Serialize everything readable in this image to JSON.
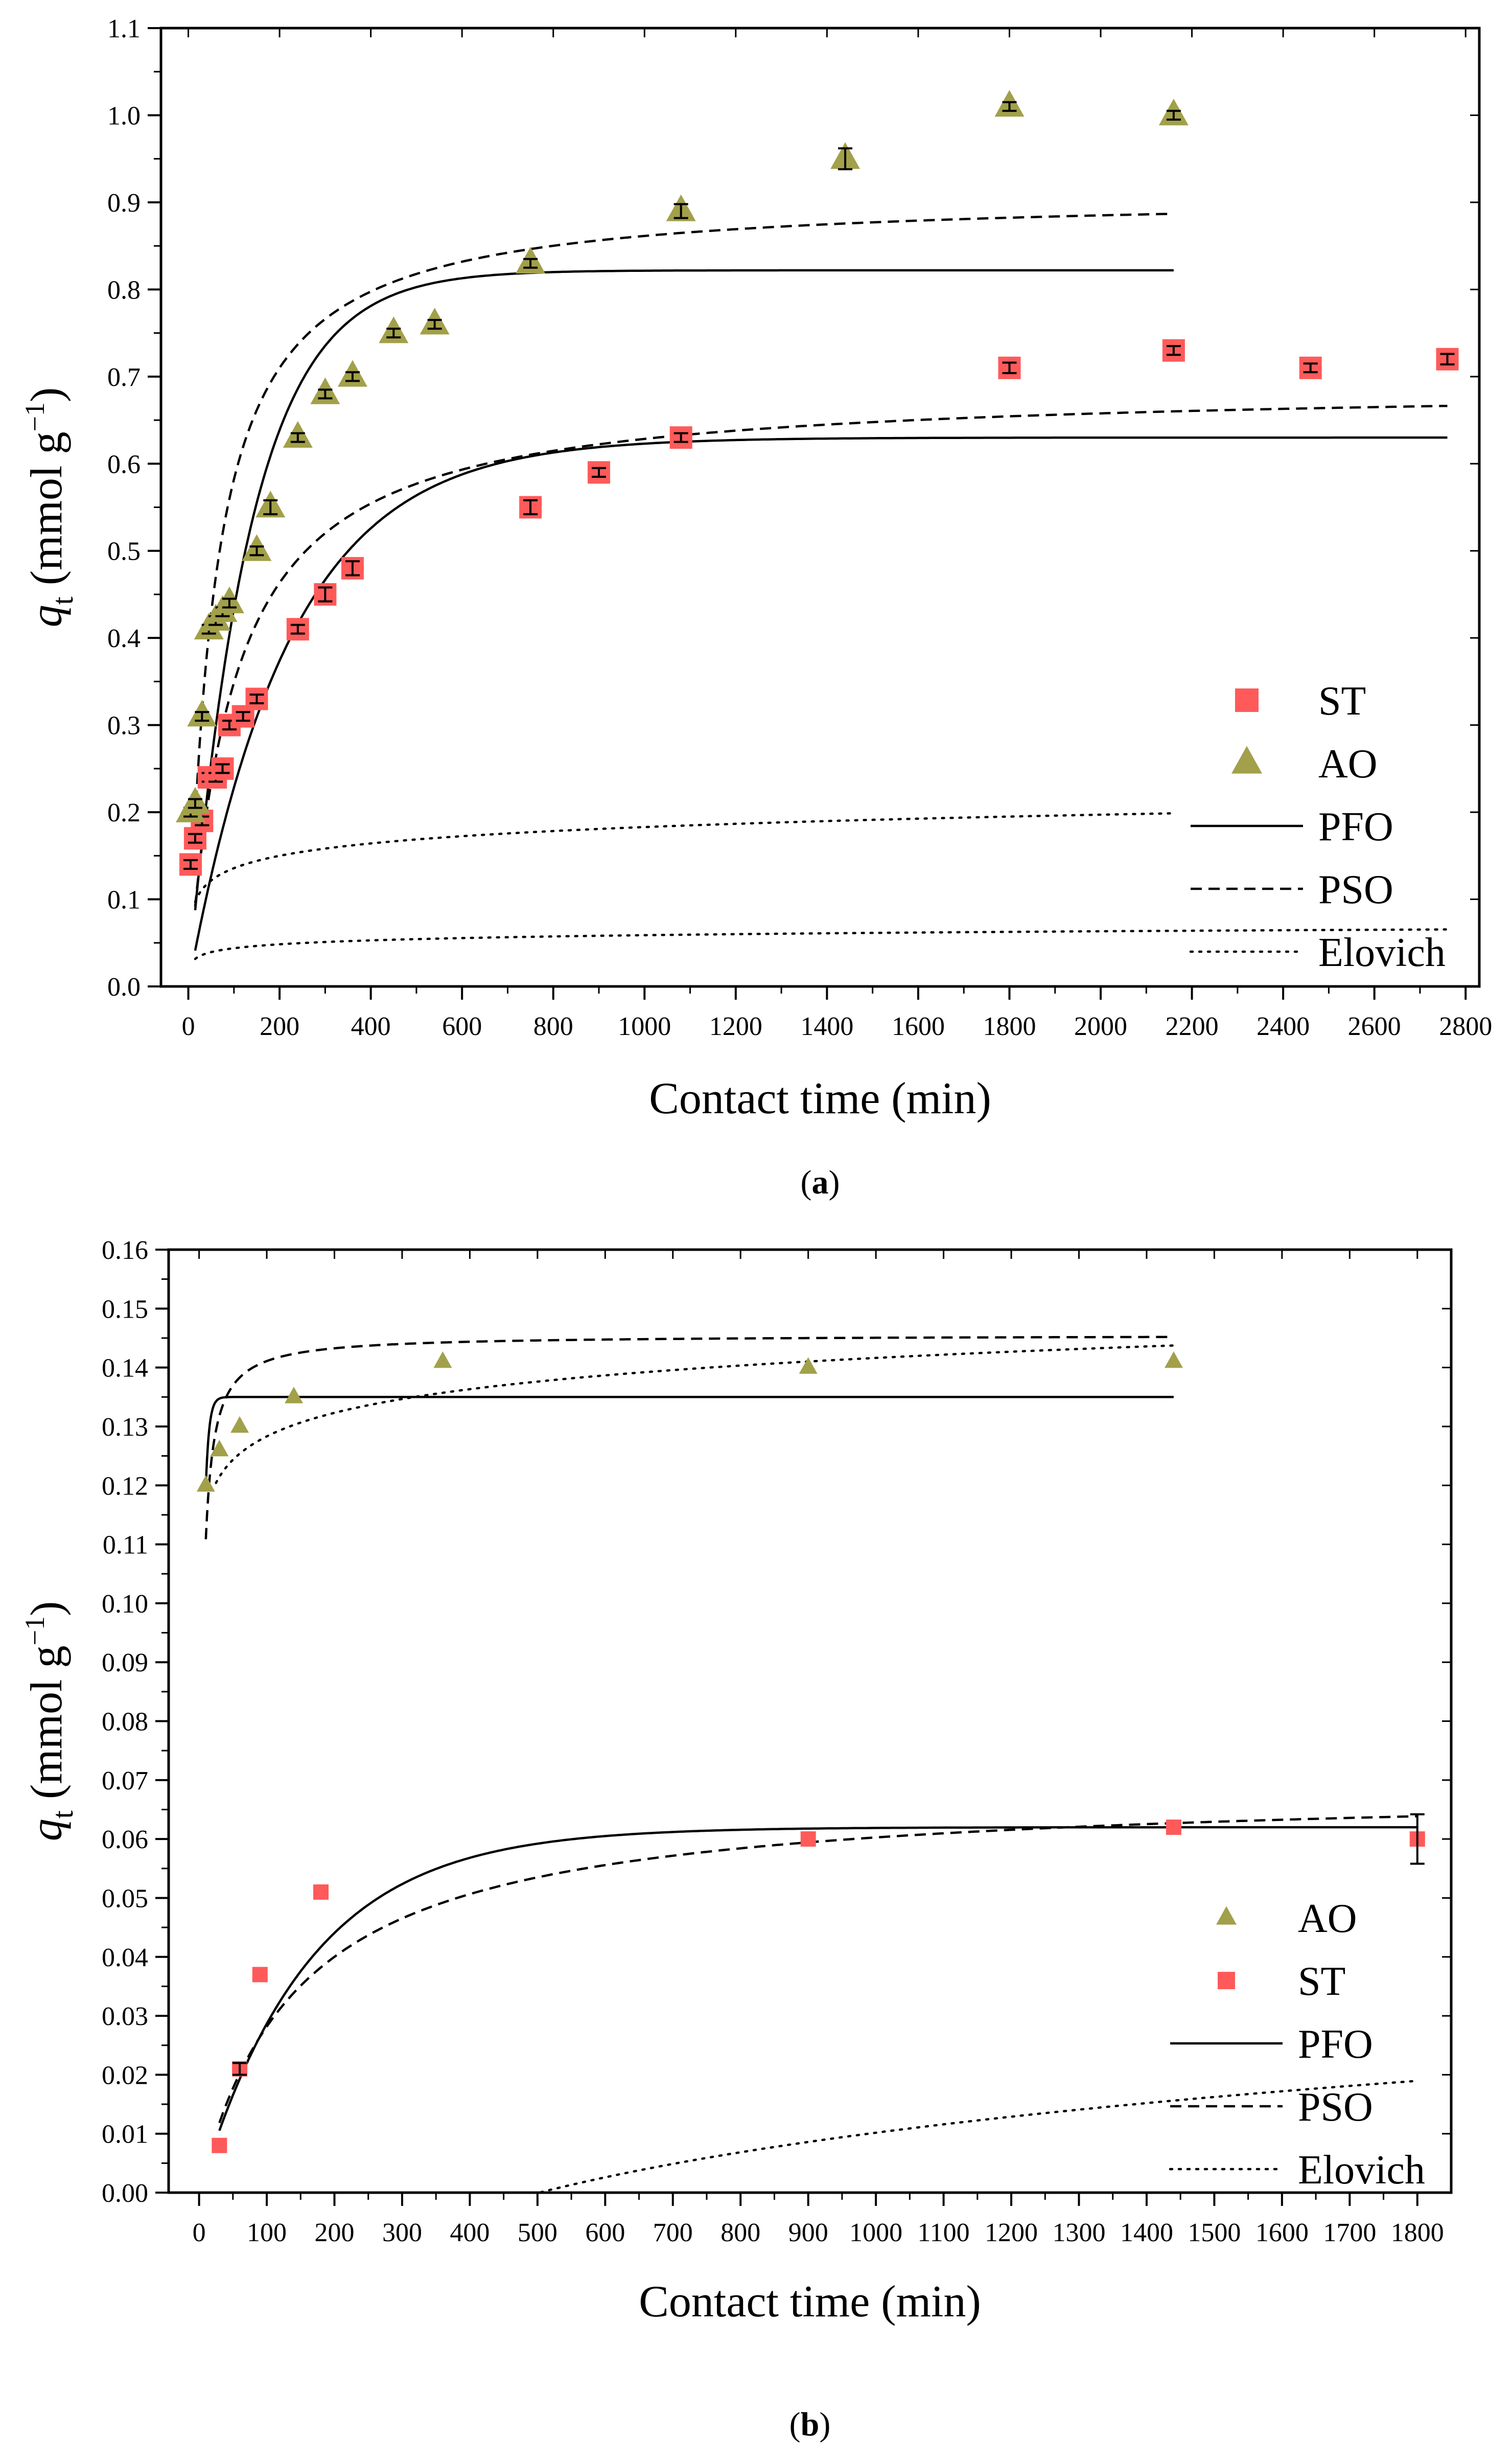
{
  "colors": {
    "st": "#ff5a5a",
    "ao": "#a2a04a",
    "line": "#000000"
  },
  "chart_data": [
    {
      "type": "scatter",
      "panel": "a",
      "caption": {
        "open": "(",
        "letter": "a",
        "close": ")"
      },
      "xlabel": "Contact time (min)",
      "ylabel": {
        "symbol": "q",
        "sub": "t",
        "unit_pre": " (mmol g",
        "unit_sup": "−1",
        "unit_post": ")"
      },
      "xlim": [
        -60,
        2830
      ],
      "ylim": [
        0,
        1.1
      ],
      "xticks": [
        0,
        200,
        400,
        600,
        800,
        1000,
        1200,
        1400,
        1600,
        1800,
        2000,
        2200,
        2400,
        2600,
        2800
      ],
      "yticks": [
        0.0,
        0.1,
        0.2,
        0.3,
        0.4,
        0.5,
        0.6,
        0.7,
        0.8,
        0.9,
        1.0,
        1.1
      ],
      "xminor": 100,
      "yminor": 0.05,
      "ydecimals": 1,
      "legend": {
        "items": [
          {
            "key": "ST",
            "label": "ST",
            "kind": "square"
          },
          {
            "key": "AO",
            "label": "AO",
            "kind": "triangle"
          },
          {
            "key": "PFO",
            "label": "PFO",
            "kind": "solid"
          },
          {
            "key": "PSO",
            "label": "PSO",
            "kind": "dashed"
          },
          {
            "key": "Elovich",
            "label": "Elovich",
            "kind": "dotted"
          }
        ]
      },
      "series": [
        {
          "name": "ST",
          "kind": "square",
          "marker_size": 44,
          "x": [
            5,
            15,
            30,
            45,
            60,
            75,
            90,
            120,
            150,
            240,
            300,
            360,
            750,
            900,
            1080,
            1800,
            2160,
            2460,
            2760
          ],
          "y": [
            0.14,
            0.17,
            0.19,
            0.24,
            0.24,
            0.25,
            0.3,
            0.31,
            0.33,
            0.41,
            0.45,
            0.48,
            0.55,
            0.59,
            0.63,
            0.71,
            0.73,
            0.71,
            0.72
          ],
          "err": [
            0.005,
            0.005,
            0.005,
            0.005,
            0.005,
            0.005,
            0.005,
            0.005,
            0.005,
            0.005,
            0.008,
            0.008,
            0.008,
            0.005,
            0.005,
            0.006,
            0.005,
            0.005,
            0.006
          ]
        },
        {
          "name": "AO",
          "kind": "triangle",
          "marker_size": 58,
          "x": [
            5,
            15,
            30,
            45,
            60,
            75,
            90,
            150,
            180,
            240,
            300,
            360,
            450,
            540,
            750,
            1080,
            1440,
            1800,
            2160
          ],
          "y": [
            0.2,
            0.21,
            0.31,
            0.41,
            0.42,
            0.43,
            0.44,
            0.5,
            0.55,
            0.63,
            0.68,
            0.7,
            0.75,
            0.76,
            0.83,
            0.89,
            0.95,
            1.01,
            1.0
          ],
          "err": [
            0.005,
            0.005,
            0.005,
            0.005,
            0.005,
            0.005,
            0.005,
            0.005,
            0.008,
            0.005,
            0.005,
            0.005,
            0.005,
            0.005,
            0.005,
            0.008,
            0.012,
            0.005,
            0.005
          ]
        },
        {
          "name": "PFO (AO)",
          "kind": "pfo",
          "qe": 0.822,
          "k": 0.0075,
          "x0": 15,
          "x1": 2160
        },
        {
          "name": "PSO (AO)",
          "kind": "pso",
          "qe": 0.91,
          "k": 0.0195,
          "x0": 15,
          "x1": 2160
        },
        {
          "name": "Elovich (AO)",
          "kind": "elovich",
          "a": 0.0205,
          "b": 7.5,
          "x0": 15,
          "x1": 2160
        },
        {
          "name": "PFO (ST)",
          "kind": "pfo",
          "qe": 0.63,
          "k": 0.0045,
          "x0": 15,
          "x1": 2760
        },
        {
          "name": "PSO (ST)",
          "kind": "pso",
          "qe": 0.69,
          "k": 0.0148,
          "x0": 15,
          "x1": 2760
        },
        {
          "name": "Elovich (ST)",
          "kind": "elovich",
          "a": 0.0065,
          "b": 8.5,
          "x0": 15,
          "x1": 2760
        }
      ]
    },
    {
      "type": "scatter",
      "panel": "b",
      "caption": {
        "open": "(",
        "letter": "b",
        "close": ")"
      },
      "xlabel": "Contact time (min)",
      "ylabel": {
        "symbol": "q",
        "sub": "t",
        "unit_pre": " (mmol g",
        "unit_sup": "−1",
        "unit_post": ")"
      },
      "xlim": [
        -45,
        1850
      ],
      "ylim": [
        0,
        0.16
      ],
      "xticks": [
        0,
        100,
        200,
        300,
        400,
        500,
        600,
        700,
        800,
        900,
        1000,
        1100,
        1200,
        1300,
        1400,
        1500,
        1600,
        1700,
        1800
      ],
      "yticks": [
        0.0,
        0.01,
        0.02,
        0.03,
        0.04,
        0.05,
        0.06,
        0.07,
        0.08,
        0.09,
        0.1,
        0.11,
        0.12,
        0.13,
        0.14,
        0.15,
        0.16
      ],
      "xminor": 50,
      "yminor": 0.005,
      "ydecimals": 2,
      "legend": {
        "items": [
          {
            "key": "AO",
            "label": "AO",
            "kind": "triangle"
          },
          {
            "key": "ST",
            "label": "ST",
            "kind": "square"
          },
          {
            "key": "PFO",
            "label": "PFO",
            "kind": "solid"
          },
          {
            "key": "PSO",
            "label": "PSO",
            "kind": "dashed"
          },
          {
            "key": "Elovich",
            "label": "Elovich",
            "kind": "dotted"
          }
        ]
      },
      "series": [
        {
          "name": "AO",
          "kind": "triangle",
          "marker_size": 36,
          "x": [
            10,
            30,
            60,
            140,
            360,
            900,
            1440
          ],
          "y": [
            0.12,
            0.126,
            0.13,
            0.135,
            0.141,
            0.14,
            0.141
          ],
          "err": [
            0,
            0,
            0,
            0,
            0,
            0,
            0
          ]
        },
        {
          "name": "ST",
          "kind": "square",
          "marker_size": 30,
          "x": [
            30,
            60,
            90,
            180,
            900,
            1440,
            1800
          ],
          "y": [
            0.008,
            0.021,
            0.037,
            0.051,
            0.06,
            0.062,
            0.06
          ],
          "err": [
            0,
            0.001,
            0,
            0,
            0,
            0,
            0.0042
          ]
        },
        {
          "name": "PFO (AO)",
          "kind": "pfo",
          "qe": 0.135,
          "k": 0.2,
          "x0": 10,
          "x1": 1440,
          "offset": 0.12
        },
        {
          "name": "PSO (AO)",
          "kind": "pso",
          "qe": 0.1455,
          "k": 2.2,
          "x0": 10,
          "x1": 1440
        },
        {
          "name": "Elovich (AO)",
          "kind": "elovich",
          "a": 0.0058,
          "b": 1.2,
          "c": 0.1005,
          "x0": 25,
          "x1": 1440
        },
        {
          "name": "PFO (ST)",
          "kind": "pfo",
          "qe": 0.062,
          "k": 0.0062,
          "x0": 30,
          "x1": 1800
        },
        {
          "name": "PSO (ST)",
          "kind": "pso",
          "qe": 0.069,
          "k": 0.1,
          "x0": 30,
          "x1": 1800
        },
        {
          "name": "Elovich (ST)",
          "kind": "elovich",
          "a": 0.0152,
          "b": 0.05,
          "c": -0.0496,
          "x0": 30,
          "x1": 1800
        }
      ]
    }
  ]
}
